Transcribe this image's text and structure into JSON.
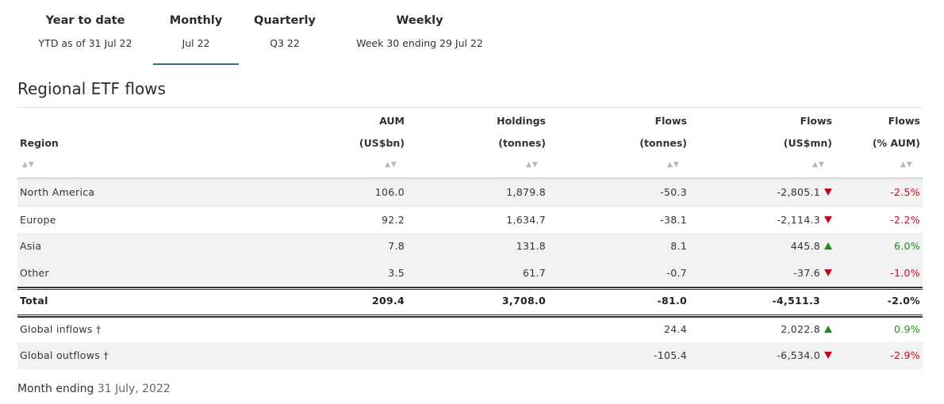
{
  "tabs": [
    {
      "title": "Year to date",
      "sub": "YTD as of 31 Jul 22",
      "active": false
    },
    {
      "title": "Monthly",
      "sub": "Jul 22",
      "active": true
    },
    {
      "title": "Quarterly",
      "sub": "Q3 22",
      "active": false
    },
    {
      "title": "Weekly",
      "sub": "Week 30 ending 29 Jul 22",
      "active": false
    }
  ],
  "section_title": "Regional ETF flows",
  "columns": {
    "region": {
      "line1": "",
      "line2": "Region"
    },
    "aum": {
      "line1": "AUM",
      "line2": "(US$bn)"
    },
    "holdings": {
      "line1": "Holdings",
      "line2": "(tonnes)"
    },
    "flows_t": {
      "line1": "Flows",
      "line2": "(tonnes)"
    },
    "flows_usd": {
      "line1": "Flows",
      "line2": "(US$mn)"
    },
    "flows_pct": {
      "line1": "Flows",
      "line2": "(% AUM)"
    }
  },
  "sort_glyph": "▲▼",
  "rows": [
    {
      "region": "North America",
      "aum": "106.0",
      "holdings": "1,879.8",
      "flows_t": "-50.3",
      "flows_usd": "-2,805.1",
      "trend": "down",
      "flows_pct": "-2.5%"
    },
    {
      "region": "Europe",
      "aum": "92.2",
      "holdings": "1,634.7",
      "flows_t": "-38.1",
      "flows_usd": "-2,114.3",
      "trend": "down",
      "flows_pct": "-2.2%"
    },
    {
      "region": "Asia",
      "aum": "7.8",
      "holdings": "131.8",
      "flows_t": "8.1",
      "flows_usd": "445.8",
      "trend": "up",
      "flows_pct": "6.0%"
    },
    {
      "region": "Other",
      "aum": "3.5",
      "holdings": "61.7",
      "flows_t": "-0.7",
      "flows_usd": "-37.6",
      "trend": "down",
      "flows_pct": "-1.0%"
    }
  ],
  "total": {
    "region": "Total",
    "aum": "209.4",
    "holdings": "3,708.0",
    "flows_t": "-81.0",
    "flows_usd": "-4,511.3",
    "flows_pct": "-2.0%"
  },
  "global": [
    {
      "region": "Global inflows †",
      "flows_t": "24.4",
      "flows_usd": "2,022.8",
      "trend": "up",
      "flows_pct": "0.9%"
    },
    {
      "region": "Global outflows †",
      "flows_t": "-105.4",
      "flows_usd": "-6,534.0",
      "trend": "down",
      "flows_pct": "-2.9%"
    }
  ],
  "footer": {
    "label": "Month ending",
    "date": "31 July, 2022"
  },
  "colors": {
    "negative": "#d0021b",
    "positive": "#1f8a1f",
    "accent": "#3b6e73",
    "row_shade": "#f2f2f2"
  }
}
